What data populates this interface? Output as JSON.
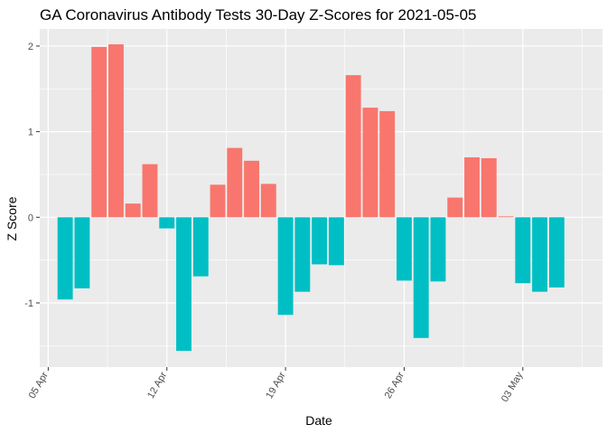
{
  "chart_data": {
    "type": "bar",
    "title": "GA Coronavirus Antibody Tests 30-Day Z-Scores for 2021-05-05",
    "xlabel": "Date",
    "ylabel": "Z Score",
    "ylim": [
      -1.75,
      2.2
    ],
    "y_ticks": [
      -1,
      0,
      1,
      2
    ],
    "x_ticks": [
      {
        "label": "05 Apr",
        "date": "2021-04-05"
      },
      {
        "label": "12 Apr",
        "date": "2021-04-12"
      },
      {
        "label": "19 Apr",
        "date": "2021-04-19"
      },
      {
        "label": "26 Apr",
        "date": "2021-04-26"
      },
      {
        "label": "03 May",
        "date": "2021-05-03"
      }
    ],
    "grid": true,
    "legend": "none",
    "positive_color": "#F8766D",
    "negative_color": "#00BFC4",
    "background_color": "#EBEBEB",
    "dates": [
      "2021-04-06",
      "2021-04-07",
      "2021-04-08",
      "2021-04-09",
      "2021-04-10",
      "2021-04-11",
      "2021-04-12",
      "2021-04-13",
      "2021-04-14",
      "2021-04-15",
      "2021-04-16",
      "2021-04-17",
      "2021-04-18",
      "2021-04-19",
      "2021-04-20",
      "2021-04-21",
      "2021-04-22",
      "2021-04-23",
      "2021-04-24",
      "2021-04-25",
      "2021-04-26",
      "2021-04-27",
      "2021-04-28",
      "2021-04-29",
      "2021-04-30",
      "2021-05-01",
      "2021-05-02",
      "2021-05-03",
      "2021-05-04",
      "2021-05-05"
    ],
    "values": [
      -0.96,
      -0.83,
      1.99,
      2.02,
      0.16,
      0.62,
      -0.13,
      -1.56,
      -0.69,
      0.38,
      0.81,
      0.66,
      0.39,
      -1.14,
      -0.87,
      -0.55,
      -0.56,
      1.66,
      1.28,
      1.24,
      -0.74,
      -1.41,
      -0.75,
      0.23,
      0.7,
      0.69,
      0.01,
      -0.77,
      -0.87,
      -0.82
    ]
  }
}
